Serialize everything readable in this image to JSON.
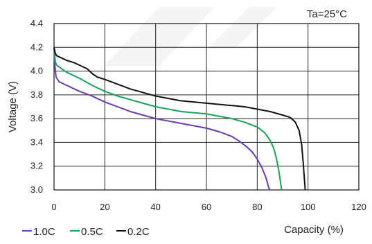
{
  "chart_data": {
    "type": "line",
    "title": "",
    "annotation": "Ta=25°C",
    "xlabel": "Capacity (%)",
    "ylabel": "Voltage (V)",
    "xlim": [
      0,
      120
    ],
    "ylim": [
      3.0,
      4.4
    ],
    "x_ticks": [
      "0",
      "20",
      "40",
      "60",
      "80",
      "100",
      "120"
    ],
    "y_ticks": [
      "3.0",
      "3.2",
      "3.4",
      "3.6",
      "3.8",
      "4.0",
      "4.2",
      "4.4"
    ],
    "grid": true,
    "legend_position": "bottom-left",
    "series": [
      {
        "name": "1.0C",
        "color": "#6a3aaa",
        "points": [
          [
            0,
            4.2
          ],
          [
            0.3,
            4.05
          ],
          [
            0.8,
            3.95
          ],
          [
            2,
            3.91
          ],
          [
            5,
            3.88
          ],
          [
            10,
            3.83
          ],
          [
            15,
            3.79
          ],
          [
            20,
            3.74
          ],
          [
            25,
            3.7
          ],
          [
            30,
            3.66
          ],
          [
            35,
            3.63
          ],
          [
            40,
            3.6
          ],
          [
            45,
            3.58
          ],
          [
            50,
            3.56
          ],
          [
            55,
            3.54
          ],
          [
            60,
            3.52
          ],
          [
            65,
            3.49
          ],
          [
            70,
            3.45
          ],
          [
            73,
            3.41
          ],
          [
            76,
            3.36
          ],
          [
            78,
            3.32
          ],
          [
            80,
            3.26
          ],
          [
            82,
            3.18
          ],
          [
            83.5,
            3.1
          ],
          [
            84.5,
            3.02
          ],
          [
            85,
            3.0
          ]
        ]
      },
      {
        "name": "0.5C",
        "color": "#1aa05a",
        "points": [
          [
            0,
            4.2
          ],
          [
            0.5,
            4.08
          ],
          [
            1,
            4.05
          ],
          [
            3,
            4.02
          ],
          [
            5,
            3.99
          ],
          [
            10,
            3.94
          ],
          [
            15,
            3.88
          ],
          [
            20,
            3.83
          ],
          [
            25,
            3.79
          ],
          [
            30,
            3.76
          ],
          [
            35,
            3.73
          ],
          [
            40,
            3.7
          ],
          [
            45,
            3.68
          ],
          [
            50,
            3.66
          ],
          [
            55,
            3.65
          ],
          [
            60,
            3.64
          ],
          [
            65,
            3.62
          ],
          [
            70,
            3.6
          ],
          [
            75,
            3.57
          ],
          [
            80,
            3.53
          ],
          [
            83,
            3.48
          ],
          [
            85,
            3.42
          ],
          [
            86.5,
            3.35
          ],
          [
            87.5,
            3.27
          ],
          [
            88.5,
            3.16
          ],
          [
            89.2,
            3.06
          ],
          [
            89.6,
            3.0
          ]
        ]
      },
      {
        "name": "0.2C",
        "color": "#111111",
        "points": [
          [
            0,
            4.2
          ],
          [
            0.5,
            4.15
          ],
          [
            1,
            4.13
          ],
          [
            3,
            4.11
          ],
          [
            5,
            4.09
          ],
          [
            8,
            4.07
          ],
          [
            10,
            4.05
          ],
          [
            13,
            4.02
          ],
          [
            15,
            3.98
          ],
          [
            17,
            3.95
          ],
          [
            20,
            3.93
          ],
          [
            25,
            3.89
          ],
          [
            30,
            3.85
          ],
          [
            35,
            3.82
          ],
          [
            40,
            3.79
          ],
          [
            45,
            3.77
          ],
          [
            50,
            3.75
          ],
          [
            55,
            3.74
          ],
          [
            60,
            3.73
          ],
          [
            65,
            3.72
          ],
          [
            70,
            3.71
          ],
          [
            75,
            3.7
          ],
          [
            80,
            3.68
          ],
          [
            85,
            3.66
          ],
          [
            90,
            3.63
          ],
          [
            93,
            3.61
          ],
          [
            95,
            3.57
          ],
          [
            96.5,
            3.5
          ],
          [
            97.5,
            3.38
          ],
          [
            98.2,
            3.2
          ],
          [
            98.6,
            3.08
          ],
          [
            98.9,
            3.0
          ]
        ]
      }
    ]
  }
}
